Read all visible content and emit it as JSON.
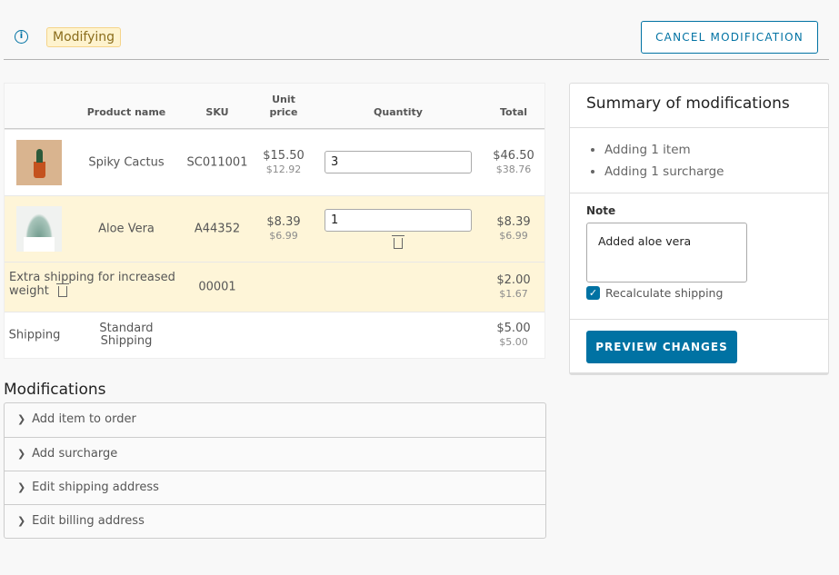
{
  "header": {
    "status_badge": "Modifying",
    "cancel_label": "CANCEL MODIFICATION"
  },
  "table": {
    "columns": [
      "Product name",
      "SKU",
      "Unit",
      "price",
      "Quantity",
      "Total"
    ],
    "rows": [
      {
        "name": "Spiky Cactus",
        "sku": "SC011001",
        "unit_price": "$15.50",
        "unit_price_net": "$12.92",
        "quantity": "3",
        "total": "$46.50",
        "total_net": "$38.76"
      },
      {
        "name": "Aloe Vera",
        "sku": "A44352",
        "unit_price": "$8.39",
        "unit_price_net": "$6.99",
        "quantity": "1",
        "total": "$8.39",
        "total_net": "$6.99"
      },
      {
        "name": "Extra shipping for increased weight",
        "sku": "00001",
        "total": "$2.00",
        "total_net": "$1.67"
      },
      {
        "name": "Shipping",
        "method": "Standard Shipping",
        "total": "$5.00",
        "total_net": "$5.00"
      }
    ]
  },
  "modifications": {
    "title": "Modifications",
    "items": [
      "Add item to order",
      "Add surcharge",
      "Edit shipping address",
      "Edit billing address"
    ]
  },
  "summary": {
    "title": "Summary of modifications",
    "items": [
      "Adding 1 item",
      "Adding 1 surcharge"
    ],
    "note_label": "Note",
    "note_value": "Added aloe vera",
    "recalc_label": "Recalculate shipping",
    "recalc_checked": true,
    "preview_label": "PREVIEW CHANGES"
  },
  "colors": {
    "accent": "#0072a3",
    "highlight": "#fef5d8"
  }
}
